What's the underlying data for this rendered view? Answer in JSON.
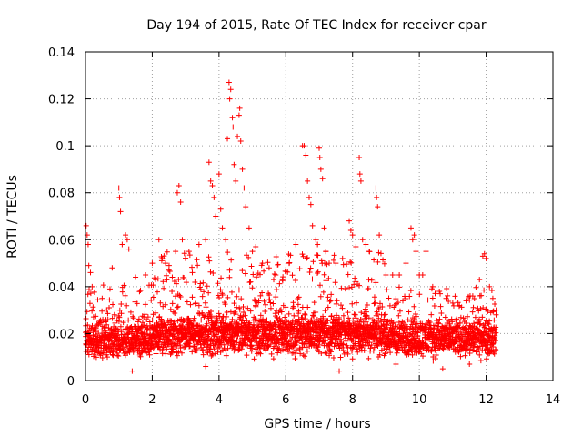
{
  "chart_data": {
    "type": "scatter",
    "title": "Day 194 of 2015, Rate Of TEC Index for receiver cpar",
    "xlabel": "GPS time / hours",
    "ylabel": "ROTI / TECUs",
    "xlim": [
      0,
      14
    ],
    "ylim": [
      0,
      0.14
    ],
    "x_ticks": [
      0,
      2,
      4,
      6,
      8,
      10,
      12,
      14
    ],
    "y_ticks": [
      0,
      0.02,
      0.04,
      0.06,
      0.08,
      0.1,
      0.12,
      0.14
    ],
    "x_tick_labels": [
      "0",
      "2",
      "4",
      "6",
      "8",
      "10",
      "12",
      "14"
    ],
    "y_tick_labels": [
      "0",
      "0.02",
      "0.04",
      "0.06",
      "0.08",
      "0.1",
      "0.12",
      "0.14"
    ],
    "grid": true,
    "marker": "+",
    "color": "#ff0000",
    "series": [
      {
        "name": "ROTI",
        "points": [
          [
            0.02,
            0.066
          ],
          [
            0.05,
            0.062
          ],
          [
            0.08,
            0.058
          ],
          [
            0.1,
            0.049
          ],
          [
            0.15,
            0.046
          ],
          [
            0.2,
            0.04
          ],
          [
            0.5,
            0.035
          ],
          [
            0.8,
            0.048
          ],
          [
            1.0,
            0.082
          ],
          [
            1.02,
            0.078
          ],
          [
            1.05,
            0.072
          ],
          [
            1.1,
            0.058
          ],
          [
            1.2,
            0.062
          ],
          [
            1.25,
            0.06
          ],
          [
            1.3,
            0.056
          ],
          [
            1.5,
            0.044
          ],
          [
            1.8,
            0.045
          ],
          [
            2.0,
            0.05
          ],
          [
            2.1,
            0.043
          ],
          [
            2.2,
            0.06
          ],
          [
            2.3,
            0.052
          ],
          [
            2.5,
            0.047
          ],
          [
            2.6,
            0.044
          ],
          [
            2.7,
            0.055
          ],
          [
            2.75,
            0.08
          ],
          [
            2.8,
            0.083
          ],
          [
            2.85,
            0.076
          ],
          [
            2.9,
            0.06
          ],
          [
            3.0,
            0.052
          ],
          [
            3.1,
            0.055
          ],
          [
            3.2,
            0.046
          ],
          [
            3.4,
            0.058
          ],
          [
            3.6,
            0.06
          ],
          [
            3.7,
            0.093
          ],
          [
            3.75,
            0.085
          ],
          [
            3.8,
            0.083
          ],
          [
            3.85,
            0.078
          ],
          [
            3.9,
            0.07
          ],
          [
            4.0,
            0.088
          ],
          [
            4.05,
            0.073
          ],
          [
            4.1,
            0.065
          ],
          [
            4.2,
            0.06
          ],
          [
            4.25,
            0.103
          ],
          [
            4.3,
            0.127
          ],
          [
            4.32,
            0.12
          ],
          [
            4.35,
            0.124
          ],
          [
            4.4,
            0.112
          ],
          [
            4.42,
            0.108
          ],
          [
            4.45,
            0.092
          ],
          [
            4.5,
            0.085
          ],
          [
            4.55,
            0.104
          ],
          [
            4.6,
            0.113
          ],
          [
            4.62,
            0.116
          ],
          [
            4.65,
            0.102
          ],
          [
            4.7,
            0.09
          ],
          [
            4.75,
            0.082
          ],
          [
            4.8,
            0.074
          ],
          [
            4.9,
            0.065
          ],
          [
            5.0,
            0.055
          ],
          [
            5.1,
            0.057
          ],
          [
            5.3,
            0.05
          ],
          [
            5.5,
            0.048
          ],
          [
            5.7,
            0.045
          ],
          [
            5.9,
            0.043
          ],
          [
            6.1,
            0.05
          ],
          [
            6.3,
            0.058
          ],
          [
            6.5,
            0.1
          ],
          [
            6.55,
            0.1
          ],
          [
            6.6,
            0.096
          ],
          [
            6.65,
            0.085
          ],
          [
            6.7,
            0.078
          ],
          [
            6.75,
            0.075
          ],
          [
            6.8,
            0.066
          ],
          [
            6.9,
            0.06
          ],
          [
            6.95,
            0.058
          ],
          [
            7.0,
            0.099
          ],
          [
            7.02,
            0.095
          ],
          [
            7.05,
            0.09
          ],
          [
            7.1,
            0.086
          ],
          [
            7.15,
            0.065
          ],
          [
            7.2,
            0.055
          ],
          [
            7.3,
            0.05
          ],
          [
            7.5,
            0.05
          ],
          [
            7.7,
            0.052
          ],
          [
            7.9,
            0.068
          ],
          [
            7.95,
            0.064
          ],
          [
            8.0,
            0.062
          ],
          [
            8.1,
            0.057
          ],
          [
            8.2,
            0.095
          ],
          [
            8.22,
            0.088
          ],
          [
            8.25,
            0.085
          ],
          [
            8.3,
            0.06
          ],
          [
            8.4,
            0.058
          ],
          [
            8.5,
            0.055
          ],
          [
            8.7,
            0.082
          ],
          [
            8.72,
            0.078
          ],
          [
            8.75,
            0.074
          ],
          [
            8.8,
            0.062
          ],
          [
            9.0,
            0.045
          ],
          [
            9.2,
            0.045
          ],
          [
            9.4,
            0.045
          ],
          [
            9.6,
            0.05
          ],
          [
            9.75,
            0.065
          ],
          [
            9.8,
            0.06
          ],
          [
            9.85,
            0.062
          ],
          [
            9.9,
            0.055
          ],
          [
            10.0,
            0.045
          ],
          [
            10.1,
            0.045
          ],
          [
            10.2,
            0.055
          ],
          [
            10.4,
            0.04
          ],
          [
            10.6,
            0.038
          ],
          [
            10.8,
            0.035
          ],
          [
            11.0,
            0.033
          ],
          [
            11.2,
            0.032
          ],
          [
            11.4,
            0.034
          ],
          [
            11.6,
            0.036
          ],
          [
            11.8,
            0.043
          ],
          [
            11.9,
            0.053
          ],
          [
            11.95,
            0.054
          ],
          [
            12.0,
            0.052
          ],
          [
            12.1,
            0.04
          ],
          [
            12.2,
            0.035
          ],
          [
            12.3,
            0.03
          ],
          [
            1.4,
            0.004
          ],
          [
            3.6,
            0.006
          ],
          [
            7.6,
            0.004
          ],
          [
            9.3,
            0.007
          ],
          [
            10.7,
            0.005
          ],
          [
            11.5,
            0.007
          ]
        ],
        "bulk_bands": [
          {
            "x_start": 0.0,
            "x_end": 2.0,
            "y_center": 0.0165,
            "y_spread": 0.0045,
            "x_step": 0.005
          },
          {
            "x_start": 2.0,
            "x_end": 5.5,
            "y_center": 0.019,
            "y_spread": 0.0055,
            "x_step": 0.005
          },
          {
            "x_start": 5.5,
            "x_end": 9.0,
            "y_center": 0.0195,
            "y_spread": 0.006,
            "x_step": 0.005
          },
          {
            "x_start": 9.0,
            "x_end": 12.3,
            "y_center": 0.0175,
            "y_spread": 0.005,
            "x_step": 0.005
          }
        ],
        "spike_bands": [
          {
            "x_start": 0.0,
            "x_end": 2.0,
            "y_max": 0.042,
            "x_step": 0.02
          },
          {
            "x_start": 2.0,
            "x_end": 5.5,
            "y_max": 0.055,
            "x_step": 0.015
          },
          {
            "x_start": 5.5,
            "x_end": 9.0,
            "y_max": 0.055,
            "x_step": 0.015
          },
          {
            "x_start": 9.0,
            "x_end": 12.3,
            "y_max": 0.04,
            "x_step": 0.02
          }
        ]
      }
    ]
  }
}
